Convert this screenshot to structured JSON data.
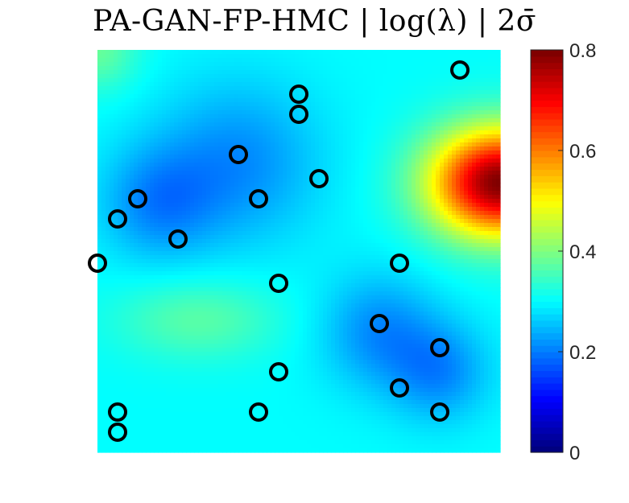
{
  "title": "PA-GAN-FP-HMC |  log(λ) | 2σ̄",
  "chart_data": {
    "type": "heatmap",
    "title": "PA-GAN-FP-HMC |  log(λ) | 2σ̄",
    "colormap": "jet",
    "colorbar": {
      "min": 0,
      "max": 0.8,
      "ticks": [
        "0",
        "0.2",
        "0.4",
        "0.6",
        "0.8"
      ],
      "tick_values": [
        0,
        0.2,
        0.4,
        0.6,
        0.8
      ]
    },
    "grid_size": [
      20,
      20
    ],
    "field_description_values": {
      "background": 0.3,
      "hotspot_peak": 0.8,
      "hotspot_location": [
        1.0,
        0.67
      ],
      "low_regions_value": 0.2,
      "warm_band_value": 0.36
    },
    "marker_style": "black-circle",
    "markers": [
      [
        0.0,
        0.47
      ],
      [
        0.05,
        0.05
      ],
      [
        0.05,
        0.1
      ],
      [
        0.05,
        0.58
      ],
      [
        0.1,
        0.63
      ],
      [
        0.2,
        0.53
      ],
      [
        0.35,
        0.74
      ],
      [
        0.4,
        0.1
      ],
      [
        0.4,
        0.63
      ],
      [
        0.45,
        0.2
      ],
      [
        0.45,
        0.42
      ],
      [
        0.5,
        0.84
      ],
      [
        0.5,
        0.89
      ],
      [
        0.55,
        0.68
      ],
      [
        0.7,
        0.32
      ],
      [
        0.75,
        0.16
      ],
      [
        0.75,
        0.47
      ],
      [
        0.85,
        0.1
      ],
      [
        0.85,
        0.26
      ],
      [
        0.9,
        0.95
      ]
    ]
  }
}
